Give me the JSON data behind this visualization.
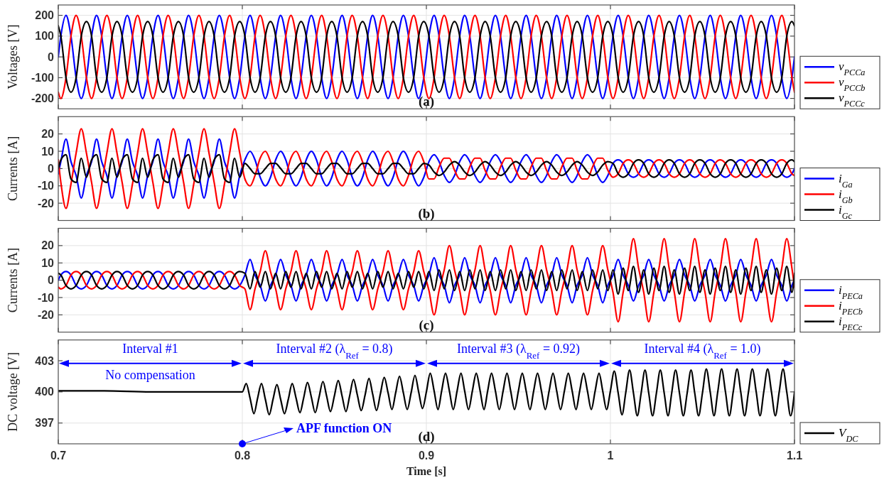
{
  "chart_data": [
    {
      "type": "line",
      "ylabel": "Voltages [V]",
      "xlim": [
        0.7,
        1.1
      ],
      "xticks": [
        0.7,
        0.8,
        0.9,
        1,
        1.1
      ],
      "ylim": [
        -250,
        250
      ],
      "yticks": [
        -200,
        -100,
        0,
        100,
        200
      ],
      "grid": true,
      "legend": "right",
      "tick_labels": "y",
      "annotations": [
        "(a)"
      ],
      "x": [
        0.7,
        0.7014,
        0.7042,
        0.7069,
        0.7097,
        0.7125,
        0.7153,
        0.7181,
        0.7208,
        0.7236,
        0.7264,
        0.7292,
        0.7319,
        0.7347,
        0.7375,
        0.7403,
        0.7431,
        0.7458,
        0.7486,
        0.7514,
        0.7542,
        0.7569,
        0.7597,
        0.7625,
        0.7653,
        0.7681,
        0.7708,
        0.7736,
        0.7764,
        0.7792,
        0.7819,
        0.7847,
        0.7875,
        0.7903,
        0.7931,
        0.7958,
        0.7986,
        0.8014,
        0.8042,
        0.8069,
        0.8097,
        0.8125,
        0.8153,
        0.8181,
        0.8208,
        0.8236,
        0.8264,
        0.8292,
        0.8319,
        0.8347,
        0.8375,
        0.8403,
        0.8431,
        0.8458,
        0.8486,
        0.8514,
        0.8542,
        0.8569,
        0.8597,
        0.8625,
        0.8653,
        0.8681,
        0.8708,
        0.8736,
        0.8764,
        0.8792,
        0.8819,
        0.8847,
        0.8875,
        0.8903,
        0.8931,
        0.8958,
        0.8986,
        0.9014,
        0.9042,
        0.9069,
        0.9097,
        0.9125,
        0.9153,
        0.9181,
        0.9208,
        0.9236,
        0.9264,
        0.9292,
        0.9319,
        0.9347,
        0.9375,
        0.9403,
        0.9431,
        0.9458,
        0.9486,
        0.9514,
        0.9542,
        0.9569,
        0.9597,
        0.9625,
        0.9653,
        0.9681,
        0.9708,
        0.9736,
        0.9764,
        0.9792,
        0.9819,
        0.9847,
        0.9875,
        0.9903,
        0.9931,
        0.9958,
        0.9986,
        1.0014,
        1.0042,
        1.0069,
        1.0097,
        1.0125,
        1.0153,
        1.0181,
        1.0208,
        1.0236,
        1.0264,
        1.0292,
        1.0319,
        1.0347,
        1.0375,
        1.0403,
        1.0431,
        1.0458,
        1.0486,
        1.0514,
        1.0542,
        1.0569,
        1.0597,
        1.0625,
        1.0653,
        1.0681,
        1.0708,
        1.0736,
        1.0764,
        1.0792,
        1.0819,
        1.0847,
        1.0875,
        1.0903,
        1.0931,
        1.0958,
        1.0986,
        1.1
      ],
      "series": [
        {
          "name": "v$_{PCCa}$",
          "color": "#0000ff",
          "values": [
            0,
            100,
            200,
            100,
            -100,
            -200,
            -100,
            100,
            200,
            100,
            -100,
            -200,
            -100,
            100,
            200,
            100,
            -100,
            -200,
            -100,
            100,
            200,
            100,
            -100,
            -200,
            -100,
            100,
            200,
            100,
            -100,
            -200,
            -100,
            100,
            200,
            100,
            -100,
            -200,
            -100,
            100,
            200,
            100,
            -100,
            -200,
            -100,
            100,
            200,
            100,
            -100,
            -200,
            -100,
            100,
            200,
            100,
            -100,
            -200,
            -100,
            100,
            200,
            100,
            -100,
            -200,
            -100,
            100,
            200,
            100,
            -100,
            -200,
            -100,
            100,
            200,
            100,
            -100,
            -200,
            -100,
            100,
            200,
            100,
            -100,
            -200,
            -100,
            100,
            200,
            100,
            -100,
            -200,
            -100,
            100,
            200,
            100,
            -100,
            -200,
            -100,
            100,
            200,
            100,
            -100,
            -200,
            -100,
            100,
            200,
            100,
            -100,
            -200,
            -100,
            100,
            200,
            100,
            -100,
            -200,
            -100,
            100,
            200,
            100,
            -100,
            -200,
            -100,
            100,
            200,
            100,
            -100,
            -200,
            -100,
            100,
            200,
            100,
            -100,
            -200,
            -100,
            100,
            200,
            100,
            -100,
            -200,
            -100,
            100,
            200,
            100,
            -100,
            -200,
            -100,
            100,
            200,
            100,
            -100,
            -200,
            -100,
            0
          ]
        },
        {
          "name": "v$_{PCCb}$",
          "color": "#ff0000",
          "values": [
            -170,
            -200,
            -100,
            100,
            200,
            100,
            -100,
            -200,
            -100,
            100,
            200,
            100,
            -100,
            -200,
            -100,
            100,
            200,
            100,
            -100,
            -200,
            -100,
            100,
            200,
            100,
            -100,
            -200,
            -100,
            100,
            200,
            100,
            -100,
            -200,
            -100,
            100,
            200,
            100,
            -100,
            -200,
            -100,
            100,
            200,
            100,
            -100,
            -200,
            -100,
            100,
            200,
            100,
            -100,
            -200,
            -100,
            100,
            200,
            100,
            -100,
            -200,
            -100,
            100,
            200,
            100,
            -100,
            -200,
            -100,
            100,
            200,
            100,
            -100,
            -200,
            -100,
            100,
            200,
            100,
            -100,
            -200,
            -100,
            100,
            200,
            100,
            -100,
            -200,
            -100,
            100,
            200,
            100,
            -100,
            -200,
            -100,
            100,
            200,
            100,
            -100,
            -200,
            -100,
            100,
            200,
            100,
            -100,
            -200,
            -100,
            100,
            200,
            100,
            -100,
            -200,
            -100,
            100,
            200,
            100,
            -100,
            -200,
            -100,
            100,
            200,
            100,
            -100,
            -200,
            -100,
            100,
            200,
            100,
            -100,
            -200,
            -100,
            100,
            200,
            100,
            -100,
            -200,
            -100,
            100,
            200,
            100,
            -100,
            -200,
            -100,
            100,
            200,
            100,
            -100,
            -200,
            -100,
            100,
            200,
            100,
            -100,
            -170
          ]
        },
        {
          "name": "v$_{PCCc}$",
          "color": "#000000",
          "values": [
            150,
            100,
            -100,
            -170,
            -100,
            100,
            170,
            100,
            -100,
            -170,
            -100,
            100,
            170,
            100,
            -100,
            -170,
            -100,
            100,
            170,
            100,
            -100,
            -170,
            -100,
            100,
            170,
            100,
            -100,
            -170,
            -100,
            100,
            170,
            100,
            -100,
            -170,
            -100,
            100,
            170,
            100,
            -100,
            -170,
            -100,
            100,
            170,
            100,
            -100,
            -170,
            -100,
            100,
            170,
            100,
            -100,
            -170,
            -100,
            100,
            170,
            100,
            -100,
            -170,
            -100,
            100,
            170,
            100,
            -100,
            -170,
            -100,
            100,
            170,
            100,
            -100,
            -170,
            -100,
            100,
            170,
            100,
            -100,
            -170,
            -100,
            100,
            170,
            100,
            -100,
            -170,
            -100,
            100,
            170,
            100,
            -100,
            -170,
            -100,
            100,
            170,
            100,
            -100,
            -170,
            -100,
            100,
            170,
            100,
            -100,
            -170,
            -100,
            100,
            170,
            100,
            -100,
            -170,
            -100,
            100,
            170,
            100,
            -100,
            -170,
            -100,
            100,
            170,
            100,
            -100,
            -170,
            -100,
            100,
            170,
            100,
            -100,
            -170,
            -100,
            100,
            170,
            100,
            -100,
            -170,
            -100,
            100,
            170,
            100,
            -100,
            -170,
            -100,
            100,
            170,
            100,
            -100,
            -170,
            -100,
            100,
            170,
            150
          ]
        }
      ]
    },
    {
      "type": "line",
      "ylabel": "Currents [A]",
      "xlim": [
        0.7,
        1.1
      ],
      "xticks": [
        0.7,
        0.8,
        0.9,
        1,
        1.1
      ],
      "ylim": [
        -30,
        30
      ],
      "yticks": [
        -20,
        -10,
        0,
        10,
        20
      ],
      "grid": true,
      "legend": "right",
      "tick_labels": "y",
      "annotations": [
        "(b)"
      ],
      "x": [
        0.7,
        0.7014,
        0.7042,
        0.7069,
        0.7097,
        0.7125,
        0.7153,
        0.7181,
        0.7208,
        0.7236,
        0.7264,
        0.7292,
        0.7319,
        0.7347,
        0.7375,
        0.7403,
        0.7431,
        0.7458,
        0.7486,
        0.7514,
        0.7542,
        0.7569,
        0.7597,
        0.7625,
        0.7653,
        0.7681,
        0.7708,
        0.7736,
        0.7764,
        0.7792,
        0.7819,
        0.7847,
        0.7875,
        0.7903,
        0.7931,
        0.7958,
        0.7986,
        0.8014,
        0.8042,
        0.8069,
        0.8097,
        0.8125,
        0.8153,
        0.8181,
        0.8208,
        0.8236,
        0.8264,
        0.8292,
        0.8319,
        0.8347,
        0.8375,
        0.8403,
        0.8431,
        0.8458,
        0.8486,
        0.8514,
        0.8542,
        0.8569,
        0.8597,
        0.8625,
        0.8653,
        0.8681,
        0.8708,
        0.8736,
        0.8764,
        0.8792,
        0.8819,
        0.8847,
        0.8875,
        0.8903,
        0.8931,
        0.8958,
        0.8986,
        0.9014,
        0.9042,
        0.9069,
        0.9097,
        0.9125,
        0.9153,
        0.9181,
        0.9208,
        0.9236,
        0.9264,
        0.9292,
        0.9319,
        0.9347,
        0.9375,
        0.9403,
        0.9431,
        0.9458,
        0.9486,
        0.9514,
        0.9542,
        0.9569,
        0.9597,
        0.9625,
        0.9653,
        0.9681,
        0.9708,
        0.9736,
        0.9764,
        0.9792,
        0.9819,
        0.9847,
        0.9875,
        0.9903,
        0.9931,
        0.9958,
        0.9986,
        1.0014,
        1.0042,
        1.0069,
        1.0097,
        1.0125,
        1.0153,
        1.0181,
        1.0208,
        1.0236,
        1.0264,
        1.0292,
        1.0319,
        1.0347,
        1.0375,
        1.0403,
        1.0431,
        1.0458,
        1.0486,
        1.0514,
        1.0542,
        1.0569,
        1.0597,
        1.0625,
        1.0653,
        1.0681,
        1.0708,
        1.0736,
        1.0764,
        1.0792,
        1.0819,
        1.0847,
        1.0875,
        1.0903,
        1.0931,
        1.0958,
        1.0986,
        1.1
      ],
      "series": [
        {
          "name": "i$_{Ga}$",
          "color": "#0000ff",
          "values": [
            -3,
            4,
            17,
            4,
            -4,
            -17,
            -4,
            4,
            17,
            4,
            -4,
            -17,
            -4,
            4,
            17,
            4,
            -4,
            -17,
            -4,
            4,
            17,
            4,
            -4,
            -17,
            -4,
            4,
            17,
            4,
            -4,
            -17,
            -4,
            4,
            17,
            4,
            -4,
            -17,
            -4,
            5,
            10,
            5,
            -5,
            -10,
            -5,
            5,
            10,
            5,
            -5,
            -10,
            -5,
            5,
            10,
            5,
            -5,
            -10,
            -5,
            5,
            10,
            5,
            -5,
            -10,
            -5,
            5,
            10,
            5,
            -5,
            -10,
            -5,
            5,
            10,
            5,
            -5,
            -10,
            -5,
            4,
            8,
            4,
            -4,
            -8,
            -4,
            4,
            8,
            4,
            -4,
            -8,
            -4,
            4,
            8,
            4,
            -4,
            -8,
            -4,
            4,
            8,
            4,
            -4,
            -8,
            -4,
            4,
            8,
            4,
            -4,
            -8,
            -4,
            4,
            8,
            4,
            -4,
            -8,
            -4,
            3,
            5,
            3,
            -3,
            -5,
            -3,
            3,
            5,
            3,
            -3,
            -5,
            -3,
            3,
            5,
            3,
            -3,
            -5,
            -3,
            3,
            5,
            3,
            -3,
            -5,
            -3,
            3,
            5,
            3,
            -3,
            -5,
            -3,
            3,
            5,
            3,
            -3,
            -5,
            -3,
            0
          ]
        },
        {
          "name": "i$_{Gb}$",
          "color": "#ff0000",
          "values": [
            5,
            -8,
            -23,
            -9,
            9,
            23,
            9,
            -8,
            -23,
            -9,
            9,
            23,
            9,
            -8,
            -23,
            -9,
            9,
            23,
            9,
            -8,
            -23,
            -9,
            9,
            23,
            9,
            -8,
            -23,
            -9,
            9,
            23,
            9,
            -8,
            -23,
            -9,
            9,
            23,
            9,
            -6,
            -10,
            -4,
            6,
            10,
            4,
            -6,
            -10,
            -4,
            6,
            10,
            4,
            -6,
            -10,
            -4,
            6,
            10,
            4,
            -6,
            -10,
            -4,
            6,
            10,
            4,
            -6,
            -10,
            -4,
            6,
            10,
            4,
            -6,
            -10,
            -4,
            6,
            10,
            4,
            -6,
            -6,
            1,
            6,
            6,
            -1,
            -6,
            -6,
            1,
            6,
            6,
            -1,
            -6,
            -6,
            1,
            6,
            6,
            -1,
            -6,
            -6,
            1,
            6,
            6,
            -1,
            -6,
            -6,
            1,
            6,
            6,
            -1,
            -6,
            -6,
            1,
            6,
            6,
            -1,
            -5,
            -3,
            3,
            5,
            3,
            -3,
            -5,
            -3,
            3,
            5,
            3,
            -3,
            -5,
            -3,
            3,
            5,
            3,
            -3,
            -5,
            -3,
            3,
            5,
            3,
            -3,
            -5,
            -3,
            3,
            5,
            3,
            -3,
            -5,
            -3,
            3,
            5,
            3,
            -3,
            -4
          ]
        },
        {
          "name": "i$_{Gc}$",
          "color": "#000000",
          "values": [
            0,
            5,
            8,
            -6,
            -8,
            6,
            -5,
            5,
            8,
            -6,
            -8,
            6,
            -5,
            5,
            8,
            -6,
            -8,
            6,
            -5,
            5,
            8,
            -6,
            -8,
            6,
            -5,
            5,
            8,
            -6,
            -8,
            6,
            -5,
            5,
            8,
            -6,
            -8,
            6,
            -5,
            3,
            0,
            -3,
            -3,
            0,
            3,
            3,
            0,
            -3,
            -3,
            0,
            3,
            3,
            0,
            -3,
            -3,
            0,
            3,
            3,
            0,
            -3,
            -3,
            0,
            3,
            3,
            0,
            -3,
            -3,
            0,
            3,
            3,
            0,
            -3,
            -3,
            0,
            3,
            2,
            -2,
            -4,
            -2,
            2,
            4,
            2,
            -2,
            -4,
            -2,
            2,
            4,
            2,
            -2,
            -4,
            -2,
            2,
            4,
            2,
            -2,
            -4,
            -2,
            2,
            4,
            2,
            -2,
            -4,
            -2,
            2,
            4,
            2,
            -2,
            -4,
            -2,
            2,
            4,
            3,
            -3,
            -5,
            -3,
            3,
            5,
            3,
            -3,
            -5,
            -3,
            3,
            5,
            3,
            -3,
            -5,
            -3,
            3,
            5,
            3,
            -3,
            -5,
            -3,
            3,
            5,
            3,
            -3,
            -5,
            -3,
            3,
            5,
            3,
            -3,
            -5,
            -3,
            3,
            5,
            4
          ]
        }
      ]
    },
    {
      "type": "line",
      "ylabel": "Currents [A]",
      "xlim": [
        0.7,
        1.1
      ],
      "xticks": [
        0.7,
        0.8,
        0.9,
        1,
        1.1
      ],
      "ylim": [
        -30,
        30
      ],
      "yticks": [
        -20,
        -10,
        0,
        10,
        20
      ],
      "grid": true,
      "legend": "right",
      "tick_labels": "y",
      "annotations": [
        "(c)"
      ],
      "x": [
        0.7,
        0.7014,
        0.7042,
        0.7069,
        0.7097,
        0.7125,
        0.7153,
        0.7181,
        0.7208,
        0.7236,
        0.7264,
        0.7292,
        0.7319,
        0.7347,
        0.7375,
        0.7403,
        0.7431,
        0.7458,
        0.7486,
        0.7514,
        0.7542,
        0.7569,
        0.7597,
        0.7625,
        0.7653,
        0.7681,
        0.7708,
        0.7736,
        0.7764,
        0.7792,
        0.7819,
        0.7847,
        0.7875,
        0.7903,
        0.7931,
        0.7958,
        0.7986,
        0.8014,
        0.8042,
        0.8069,
        0.8097,
        0.8125,
        0.8153,
        0.8181,
        0.8208,
        0.8236,
        0.8264,
        0.8292,
        0.8319,
        0.8347,
        0.8375,
        0.8403,
        0.8431,
        0.8458,
        0.8486,
        0.8514,
        0.8542,
        0.8569,
        0.8597,
        0.8625,
        0.8653,
        0.8681,
        0.8708,
        0.8736,
        0.8764,
        0.8792,
        0.8819,
        0.8847,
        0.8875,
        0.8903,
        0.8931,
        0.8958,
        0.8986,
        0.9014,
        0.9042,
        0.9069,
        0.9097,
        0.9125,
        0.9153,
        0.9181,
        0.9208,
        0.9236,
        0.9264,
        0.9292,
        0.9319,
        0.9347,
        0.9375,
        0.9403,
        0.9431,
        0.9458,
        0.9486,
        0.9514,
        0.9542,
        0.9569,
        0.9597,
        0.9625,
        0.9653,
        0.9681,
        0.9708,
        0.9736,
        0.9764,
        0.9792,
        0.9819,
        0.9847,
        0.9875,
        0.9903,
        0.9931,
        0.9958,
        0.9986,
        1.0014,
        1.0042,
        1.0069,
        1.0097,
        1.0125,
        1.0153,
        1.0181,
        1.0208,
        1.0236,
        1.0264,
        1.0292,
        1.0319,
        1.0347,
        1.0375,
        1.0403,
        1.0431,
        1.0458,
        1.0486,
        1.0514,
        1.0542,
        1.0569,
        1.0597,
        1.0625,
        1.0653,
        1.0681,
        1.0708,
        1.0736,
        1.0764,
        1.0792,
        1.0819,
        1.0847,
        1.0875,
        1.0903,
        1.0931,
        1.0958,
        1.0986,
        1.1
      ],
      "series": [
        {
          "name": "i$_{PECa}$",
          "color": "#0000ff",
          "values": [
            0,
            3,
            5,
            3,
            -3,
            -5,
            -3,
            3,
            5,
            3,
            -3,
            -5,
            -3,
            3,
            5,
            3,
            -3,
            -5,
            -3,
            3,
            5,
            3,
            -3,
            -5,
            -3,
            3,
            5,
            3,
            -3,
            -5,
            -3,
            3,
            5,
            3,
            -3,
            -5,
            -3,
            3,
            12,
            3,
            -3,
            -12,
            -3,
            3,
            12,
            3,
            -3,
            -12,
            -3,
            3,
            12,
            3,
            -3,
            -12,
            -3,
            3,
            12,
            3,
            -3,
            -12,
            -3,
            3,
            12,
            3,
            -3,
            -12,
            -3,
            3,
            12,
            3,
            -3,
            -12,
            -3,
            3,
            13,
            3,
            -3,
            -13,
            -3,
            3,
            13,
            3,
            -3,
            -13,
            -3,
            3,
            13,
            3,
            -3,
            -13,
            -3,
            3,
            13,
            3,
            -3,
            -13,
            -3,
            3,
            13,
            3,
            -3,
            -13,
            -3,
            3,
            13,
            3,
            -3,
            -13,
            -3,
            3,
            12,
            3,
            -3,
            -12,
            -3,
            3,
            12,
            3,
            -3,
            -12,
            -3,
            3,
            12,
            3,
            -3,
            -12,
            -3,
            3,
            12,
            3,
            -3,
            -12,
            -3,
            3,
            12,
            3,
            -3,
            -12,
            -3,
            3,
            12,
            3,
            -3,
            -12,
            -3,
            0
          ]
        },
        {
          "name": "i$_{PECb}$",
          "color": "#ff0000",
          "values": [
            -4,
            -5,
            -3,
            3,
            5,
            3,
            -3,
            -5,
            -3,
            3,
            5,
            3,
            -3,
            -5,
            -3,
            3,
            5,
            3,
            -3,
            -5,
            -3,
            3,
            5,
            3,
            -3,
            -5,
            -3,
            3,
            5,
            3,
            -3,
            -5,
            -3,
            3,
            5,
            3,
            -3,
            -5,
            -17,
            -5,
            5,
            17,
            5,
            -5,
            -17,
            -5,
            5,
            17,
            5,
            -5,
            -17,
            -5,
            5,
            17,
            5,
            -5,
            -17,
            -5,
            5,
            17,
            5,
            -5,
            -17,
            -5,
            5,
            17,
            5,
            -5,
            -17,
            -5,
            5,
            17,
            5,
            -6,
            -20,
            -6,
            6,
            20,
            6,
            -6,
            -20,
            -6,
            6,
            20,
            6,
            -6,
            -20,
            -6,
            6,
            20,
            6,
            -6,
            -20,
            -6,
            6,
            20,
            6,
            -6,
            -20,
            -6,
            6,
            20,
            6,
            -6,
            -20,
            -6,
            6,
            20,
            6,
            -7,
            -24,
            -7,
            7,
            24,
            7,
            -7,
            -24,
            -7,
            7,
            24,
            7,
            -7,
            -24,
            -7,
            7,
            24,
            7,
            -7,
            -24,
            -7,
            7,
            24,
            7,
            -7,
            -24,
            -7,
            7,
            24,
            7,
            -7,
            -24,
            -7,
            7,
            24,
            7,
            -4
          ]
        },
        {
          "name": "i$_{PECc}$",
          "color": "#000000",
          "values": [
            4,
            3,
            -3,
            -5,
            -3,
            3,
            5,
            3,
            -3,
            -5,
            -3,
            3,
            5,
            3,
            -3,
            -5,
            -3,
            3,
            5,
            3,
            -3,
            -5,
            -3,
            3,
            5,
            3,
            -3,
            -5,
            -3,
            3,
            5,
            3,
            -3,
            -5,
            -3,
            3,
            5,
            4,
            -5,
            5,
            -4,
            5,
            -5,
            4,
            -5,
            5,
            -4,
            5,
            -5,
            4,
            -5,
            5,
            -4,
            5,
            -5,
            4,
            -5,
            5,
            -4,
            5,
            -5,
            4,
            -5,
            5,
            -4,
            5,
            -5,
            4,
            -5,
            5,
            -4,
            5,
            -5,
            5,
            -6,
            6,
            -5,
            6,
            -6,
            5,
            -6,
            6,
            -5,
            6,
            -6,
            5,
            -6,
            6,
            -5,
            6,
            -6,
            5,
            -6,
            6,
            -5,
            6,
            -6,
            5,
            -6,
            6,
            -5,
            6,
            -6,
            5,
            -6,
            6,
            -5,
            6,
            -6,
            6,
            -8,
            7,
            -6,
            8,
            -7,
            6,
            -8,
            7,
            -6,
            8,
            -7,
            6,
            -8,
            7,
            -6,
            8,
            -7,
            6,
            -8,
            7,
            -6,
            8,
            -7,
            6,
            -8,
            7,
            -6,
            8,
            -7,
            6,
            -8,
            7,
            -6,
            8,
            -7,
            4
          ]
        }
      ]
    },
    {
      "type": "line",
      "ylabel": "DC voltage [V]",
      "xlabel": "Time [s]",
      "xlim": [
        0.7,
        1.1
      ],
      "xticks": [
        0.7,
        0.8,
        0.9,
        1,
        1.1
      ],
      "ylim": [
        395,
        405
      ],
      "yticks": [
        397,
        400,
        403
      ],
      "grid": true,
      "legend": "right",
      "annotations": [
        "(d)",
        "Interval #1\nNo compensation",
        "Interval #2  (λ$_{Ref}$ = 0.8)",
        "Interval #3 (λ$_{Ref}$ = 0.92)",
        "Interval #4 (λ$_{Ref}$ = 1.0)",
        {
          "text": "APF function ON",
          "x": 0.8,
          "y": 395
        }
      ],
      "x": [
        0.7,
        0.725,
        0.75,
        0.775,
        0.8,
        0.8021,
        0.8042,
        0.8063,
        0.8083,
        0.8104,
        0.8125,
        0.8146,
        0.8167,
        0.8188,
        0.8208,
        0.8229,
        0.825,
        0.8271,
        0.8292,
        0.8313,
        0.8333,
        0.8354,
        0.8375,
        0.8396,
        0.8417,
        0.8438,
        0.8458,
        0.8479,
        0.85,
        0.8521,
        0.8542,
        0.8563,
        0.8583,
        0.8604,
        0.8625,
        0.8646,
        0.8667,
        0.8688,
        0.8708,
        0.8729,
        0.875,
        0.8771,
        0.8792,
        0.8813,
        0.8833,
        0.8854,
        0.8875,
        0.8896,
        0.8917,
        0.8938,
        0.8958,
        0.8979,
        0.9,
        0.9021,
        0.9042,
        0.9063,
        0.9083,
        0.9104,
        0.9125,
        0.9146,
        0.9167,
        0.9188,
        0.9208,
        0.9229,
        0.925,
        0.9271,
        0.9292,
        0.9313,
        0.9333,
        0.9354,
        0.9375,
        0.9396,
        0.9417,
        0.9438,
        0.9458,
        0.9479,
        0.95,
        0.9521,
        0.9542,
        0.9563,
        0.9583,
        0.9604,
        0.9625,
        0.9646,
        0.9667,
        0.9688,
        0.9708,
        0.9729,
        0.975,
        0.9771,
        0.9792,
        0.9813,
        0.9833,
        0.9854,
        0.9875,
        0.9896,
        0.9917,
        0.9938,
        0.9958,
        0.9979,
        1,
        1.0021,
        1.0042,
        1.0063,
        1.0083,
        1.0104,
        1.0125,
        1.0146,
        1.0167,
        1.0188,
        1.0208,
        1.0229,
        1.025,
        1.0271,
        1.0292,
        1.0313,
        1.0333,
        1.0354,
        1.0375,
        1.0396,
        1.0417,
        1.0438,
        1.0458,
        1.0479,
        1.05,
        1.0521,
        1.0542,
        1.0563,
        1.0583,
        1.0604,
        1.0625,
        1.0646,
        1.0667,
        1.0688,
        1.0708,
        1.0729,
        1.075,
        1.0771,
        1.0792,
        1.0813,
        1.0833,
        1.0854,
        1.0875,
        1.0896,
        1.0917,
        1.0938,
        1.0958,
        1.0979,
        1.1
      ],
      "series": [
        {
          "name": "V$_{DC}$",
          "color": "#000000",
          "values": [
            400.1,
            400.1,
            400,
            400,
            400,
            400.8,
            399.4,
            397.9,
            399.4,
            400.8,
            399.3,
            397.8,
            399.3,
            400.7,
            399.3,
            397.9,
            399.3,
            400.8,
            399.4,
            398,
            399.4,
            400.9,
            399.5,
            398,
            399.5,
            401,
            399.6,
            398.1,
            399.6,
            401.1,
            399.6,
            398.1,
            399.6,
            401.2,
            399.7,
            398.2,
            399.7,
            401.3,
            399.8,
            398.2,
            399.8,
            401.4,
            399.9,
            398.3,
            399.9,
            401.5,
            399.9,
            398.3,
            399.9,
            401.6,
            400,
            398.4,
            400,
            401.8,
            400.1,
            398.3,
            400.1,
            401.8,
            400.1,
            398.3,
            400.1,
            401.8,
            400.1,
            398.3,
            400.1,
            401.8,
            400.1,
            398.3,
            400.1,
            401.8,
            400.1,
            398.3,
            400.1,
            401.8,
            400.1,
            398.3,
            400.1,
            401.8,
            400.1,
            398.3,
            400.1,
            401.8,
            400.1,
            398.3,
            400.1,
            401.8,
            400.1,
            398.3,
            400.1,
            401.8,
            400.1,
            398.3,
            400.1,
            401.8,
            400.1,
            398.3,
            400.1,
            401.8,
            400.1,
            398.3,
            400.1,
            402,
            399.9,
            397.8,
            399.9,
            402.1,
            399.9,
            397.7,
            399.9,
            402.1,
            399.9,
            397.7,
            399.9,
            402.1,
            399.9,
            397.7,
            399.9,
            402.1,
            399.9,
            397.7,
            399.9,
            402.1,
            399.9,
            397.7,
            399.9,
            402.2,
            400,
            397.7,
            400,
            402.2,
            400,
            397.7,
            400,
            402.2,
            400,
            397.7,
            400,
            402.2,
            400,
            397.7,
            400,
            402.2,
            400,
            397.7,
            400,
            402.2,
            400,
            397.7,
            400
          ]
        }
      ]
    }
  ]
}
